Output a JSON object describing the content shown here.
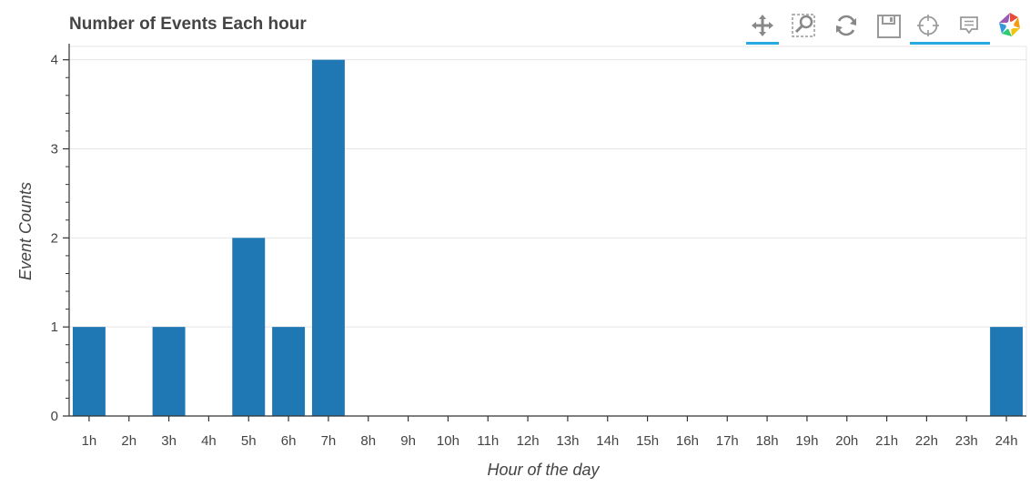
{
  "toolbar": {
    "tools": [
      {
        "name": "pan-tool",
        "icon": "pan-icon",
        "active": true
      },
      {
        "name": "box-zoom-tool",
        "icon": "box-zoom-icon",
        "active": false
      },
      {
        "name": "reset-tool",
        "icon": "reset-icon",
        "active": false
      },
      {
        "name": "save-tool",
        "icon": "save-icon",
        "active": false
      },
      {
        "name": "crosshair-tool",
        "icon": "crosshair-icon",
        "active": true
      },
      {
        "name": "hover-tool",
        "icon": "hover-icon",
        "active": true
      },
      {
        "name": "bokeh-logo",
        "icon": "bokeh-logo-icon",
        "active": false
      }
    ],
    "accent_color": "#26aae1"
  },
  "chart_data": {
    "type": "bar",
    "title": "Number of Events Each hour",
    "xlabel": "Hour of the day",
    "ylabel": "Event Counts",
    "categories": [
      "1h",
      "2h",
      "3h",
      "4h",
      "5h",
      "6h",
      "7h",
      "8h",
      "9h",
      "10h",
      "11h",
      "12h",
      "13h",
      "14h",
      "15h",
      "16h",
      "17h",
      "18h",
      "19h",
      "20h",
      "21h",
      "22h",
      "23h",
      "24h"
    ],
    "values": [
      1,
      0,
      1,
      0,
      2,
      1,
      4,
      0,
      0,
      0,
      0,
      0,
      0,
      0,
      0,
      0,
      0,
      0,
      0,
      0,
      0,
      0,
      0,
      1
    ],
    "ylim": [
      0,
      4.15
    ],
    "yticks": [
      0,
      1,
      2,
      3,
      4
    ],
    "grid": "horizontal",
    "bar_color": "#1f77b4"
  }
}
